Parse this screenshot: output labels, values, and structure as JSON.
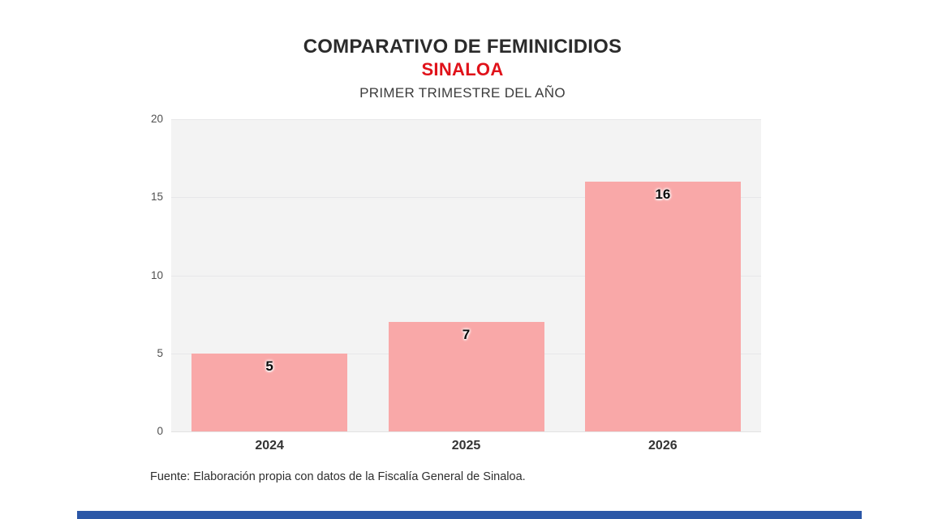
{
  "header": {
    "title": "COMPARATIVO DE FEMINICIDIOS",
    "subtitle": "SINALOA",
    "period": "PRIMER TRIMESTRE DEL AÑO"
  },
  "chart_data": {
    "type": "bar",
    "title": "COMPARATIVO DE FEMINICIDIOS — SINALOA — PRIMER TRIMESTRE DEL AÑO",
    "categories": [
      "2024",
      "2025",
      "2026"
    ],
    "values": [
      5,
      7,
      16
    ],
    "xlabel": "",
    "ylabel": "",
    "ylim": [
      0,
      20
    ],
    "yticks": [
      0,
      5,
      10,
      15,
      20
    ],
    "grid": true,
    "legend": "none",
    "bar_color": "#f9a8a8",
    "plot_background": "#f3f3f3"
  },
  "footer": {
    "source": "Fuente: Elaboración propia con datos de la Fiscalía General de Sinaloa."
  },
  "colors": {
    "title_text": "#2b2b2b",
    "accent_red": "#e0121a",
    "bar_pink": "#f9a8a8",
    "bottom_bar_blue": "#2b57a7"
  }
}
